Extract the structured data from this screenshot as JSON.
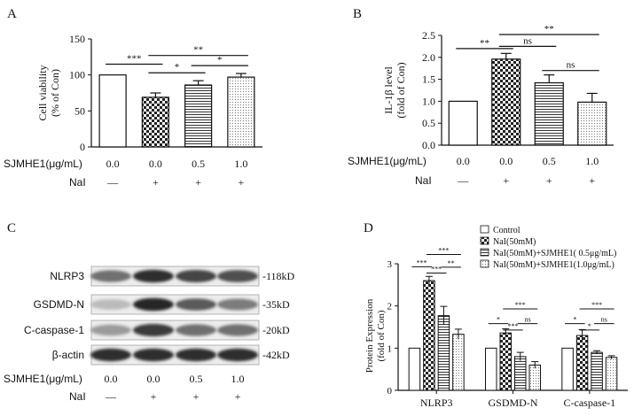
{
  "chart_data": [
    {
      "panel": "A",
      "type": "bar",
      "ylabel": "Cell viability\n(% of Con)",
      "ylabel_lines": [
        "Cell viability",
        "(% of Con)"
      ],
      "ylim": [
        0,
        150
      ],
      "yticks": [
        0,
        50,
        100,
        150
      ],
      "categories": [
        "0.0",
        "0.0",
        "0.5",
        "1.0"
      ],
      "values": [
        100,
        69,
        86,
        97
      ],
      "errors": [
        0,
        6,
        6,
        5
      ],
      "patterns": [
        "white",
        "checker",
        "hlines",
        "dots"
      ],
      "row_labels": [
        "SJMHE1(μg/mL)",
        "NaI"
      ],
      "dose": [
        "0.0",
        "0.0",
        "0.5",
        "1.0"
      ],
      "nai": [
        "—",
        "+",
        "+",
        "+"
      ],
      "sig": [
        {
          "from": 0,
          "to": 1,
          "label": "***",
          "y": 115
        },
        {
          "from": 1,
          "to": 3,
          "label": "**",
          "y": 127
        },
        {
          "from": 1,
          "to": 2,
          "label": "*",
          "y": 103
        },
        {
          "from": 2,
          "to": 3,
          "label": "*",
          "y": 113
        }
      ]
    },
    {
      "panel": "B",
      "type": "bar",
      "ylabel": "IL-1β level\n(fold of Con)",
      "ylabel_lines": [
        "IL-1β level",
        "(fold of Con)"
      ],
      "ylim": [
        0,
        2.5
      ],
      "yticks": [
        0,
        0.5,
        1.0,
        1.5,
        2.0,
        2.5
      ],
      "ytick_labels": [
        "0.0",
        "0.5",
        "1.0",
        "1.5",
        "2.0",
        "2.5"
      ],
      "categories": [
        "0.0",
        "0.0",
        "0.5",
        "1.0"
      ],
      "values": [
        1.0,
        1.96,
        1.42,
        0.98
      ],
      "errors": [
        0,
        0.13,
        0.18,
        0.2
      ],
      "patterns": [
        "white",
        "checker",
        "hlines",
        "dots"
      ],
      "row_labels": [
        "SJMHE1(μg/mL)",
        "NaI"
      ],
      "dose": [
        "0.0",
        "0.0",
        "0.5",
        "1.0"
      ],
      "nai": [
        "—",
        "+",
        "+",
        "+"
      ],
      "sig": [
        {
          "from": 0,
          "to": 1,
          "label": "**",
          "y": 2.2
        },
        {
          "from": 1,
          "to": 2,
          "label": "ns",
          "y": 2.25
        },
        {
          "from": 1,
          "to": 3,
          "label": "**",
          "y": 2.52
        },
        {
          "from": 2,
          "to": 3,
          "label": "ns",
          "y": 1.7
        }
      ]
    },
    {
      "panel": "D",
      "type": "bar",
      "ylabel": "Protein Expression\n(fold of Con)",
      "ylabel_lines": [
        "Protein Expression",
        "(fold of Con)"
      ],
      "ylim": [
        0,
        3
      ],
      "yticks": [
        0,
        1,
        2,
        3
      ],
      "categories": [
        "NLRP3",
        "GSDMD-N",
        "C-caspase-1"
      ],
      "series": [
        {
          "name": "Control",
          "values": [
            1.0,
            1.0,
            1.0
          ],
          "errors": [
            0,
            0,
            0
          ],
          "pattern": "white"
        },
        {
          "name": "NaI(50mM)",
          "values": [
            2.6,
            1.36,
            1.3
          ],
          "errors": [
            0.1,
            0.1,
            0.14
          ],
          "pattern": "checker"
        },
        {
          "name": "NaI(50mM)+SJMHE1( 0.5μg/mL)",
          "values": [
            1.77,
            0.8,
            0.9
          ],
          "errors": [
            0.22,
            0.1,
            0.04
          ],
          "pattern": "hlines"
        },
        {
          "name": "NaI(50mM)+SJMHE1(1.0μg/mL)",
          "values": [
            1.33,
            0.6,
            0.78
          ],
          "errors": [
            0.12,
            0.08,
            0.04
          ],
          "pattern": "dots"
        }
      ],
      "sig": [
        {
          "group": 0,
          "from": 0,
          "to": 1,
          "label": "***",
          "y": 2.93
        },
        {
          "group": 0,
          "from": 1,
          "to": 3,
          "label": "***",
          "y": 3.22
        },
        {
          "group": 0,
          "from": 1,
          "to": 2,
          "label": "***",
          "y": 2.78
        },
        {
          "group": 0,
          "from": 2,
          "to": 3,
          "label": "**",
          "y": 2.92
        },
        {
          "group": 1,
          "from": 0,
          "to": 1,
          "label": "*",
          "y": 1.58
        },
        {
          "group": 1,
          "from": 1,
          "to": 3,
          "label": "***",
          "y": 1.93
        },
        {
          "group": 1,
          "from": 1,
          "to": 2,
          "label": "***",
          "y": 1.43
        },
        {
          "group": 1,
          "from": 2,
          "to": 3,
          "label": "ns",
          "y": 1.58
        },
        {
          "group": 2,
          "from": 0,
          "to": 1,
          "label": "*",
          "y": 1.58
        },
        {
          "group": 2,
          "from": 1,
          "to": 3,
          "label": "***",
          "y": 1.93
        },
        {
          "group": 2,
          "from": 1,
          "to": 2,
          "label": "*",
          "y": 1.43
        },
        {
          "group": 2,
          "from": 2,
          "to": 3,
          "label": "ns",
          "y": 1.58
        }
      ]
    }
  ],
  "panels": {
    "A": "A",
    "B": "B",
    "C": "C",
    "D": "D"
  },
  "blot": {
    "rows": [
      "NLRP3",
      "GSDMD-N",
      "C-caspase-1",
      "β-actin"
    ],
    "sizes": [
      "-118kD",
      "-35kD",
      "-20kD",
      "-42kD"
    ],
    "intensity": [
      [
        0.55,
        0.85,
        0.75,
        0.7
      ],
      [
        0.2,
        0.9,
        0.65,
        0.5
      ],
      [
        0.35,
        0.8,
        0.55,
        0.55
      ],
      [
        0.85,
        0.85,
        0.85,
        0.85
      ]
    ],
    "row_labels": [
      "SJMHE1(μg/mL)",
      "NaI"
    ],
    "dose": [
      "0.0",
      "0.0",
      "0.5",
      "1.0"
    ],
    "nai": [
      "—",
      "+",
      "+",
      "+"
    ]
  }
}
